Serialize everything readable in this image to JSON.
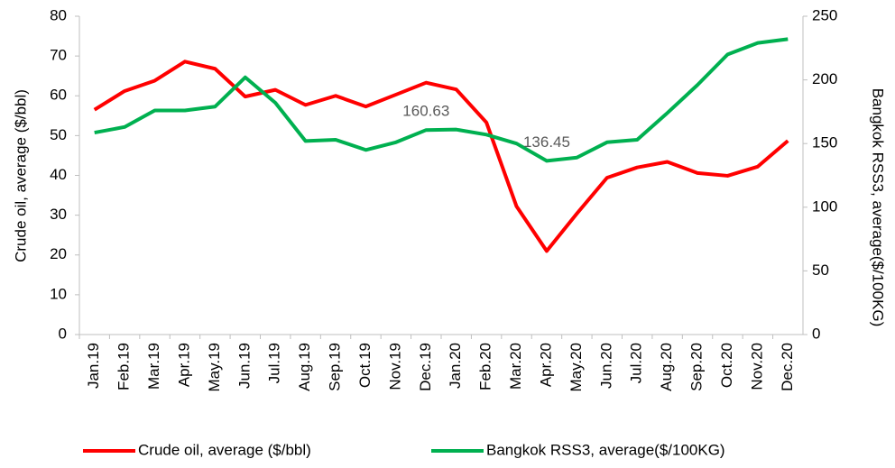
{
  "chart_data": {
    "type": "line",
    "categories": [
      "Jan.19",
      "Feb.19",
      "Mar.19",
      "Apr.19",
      "May.19",
      "Jun.19",
      "Jul.19",
      "Aug.19",
      "Sep.19",
      "Oct.19",
      "Nov.19",
      "Dec.19",
      "Jan.20",
      "Feb.20",
      "Mar.20",
      "Apr.20",
      "May.20",
      "Jun.20",
      "Jul.20",
      "Aug.20",
      "Sep.20",
      "Oct.20",
      "Nov.20",
      "Dec.20"
    ],
    "y_label": "Crude oil, average ($/bbl)",
    "y2_label": "Bangkok RSS3, average($/100KG)",
    "ylim": [
      0,
      80
    ],
    "yticks": [
      0,
      10,
      20,
      30,
      40,
      50,
      60,
      70,
      80
    ],
    "y2lim": [
      0,
      250
    ],
    "y2ticks": [
      0,
      50,
      100,
      150,
      200,
      250
    ],
    "grid": false,
    "legend": "bottom",
    "series": [
      {
        "name": "Crude oil, average ($/bbl)",
        "color": "#ff0000",
        "values": [
          56.5,
          61.2,
          63.8,
          68.6,
          66.8,
          59.8,
          61.5,
          57.7,
          60.0,
          57.3,
          60.3,
          63.3,
          61.6,
          53.3,
          32.2,
          21.0,
          30.4,
          39.4,
          42.0,
          43.4,
          40.6,
          39.9,
          42.2,
          48.7
        ]
      },
      {
        "name": "Bangkok RSS3, average($/100KG)",
        "color": "#00b050",
        "axis": "y2",
        "values": [
          158.6,
          163,
          176,
          176,
          179,
          202,
          182,
          152,
          153,
          145,
          151,
          160.63,
          161,
          157,
          150,
          136.45,
          139,
          151,
          153,
          174,
          196,
          220,
          229,
          232
        ],
        "value_labels": [
          null,
          null,
          null,
          null,
          null,
          null,
          null,
          null,
          null,
          null,
          null,
          "160.63",
          null,
          null,
          null,
          "136.45",
          null,
          null,
          null,
          null,
          null,
          null,
          null,
          null
        ]
      }
    ]
  }
}
